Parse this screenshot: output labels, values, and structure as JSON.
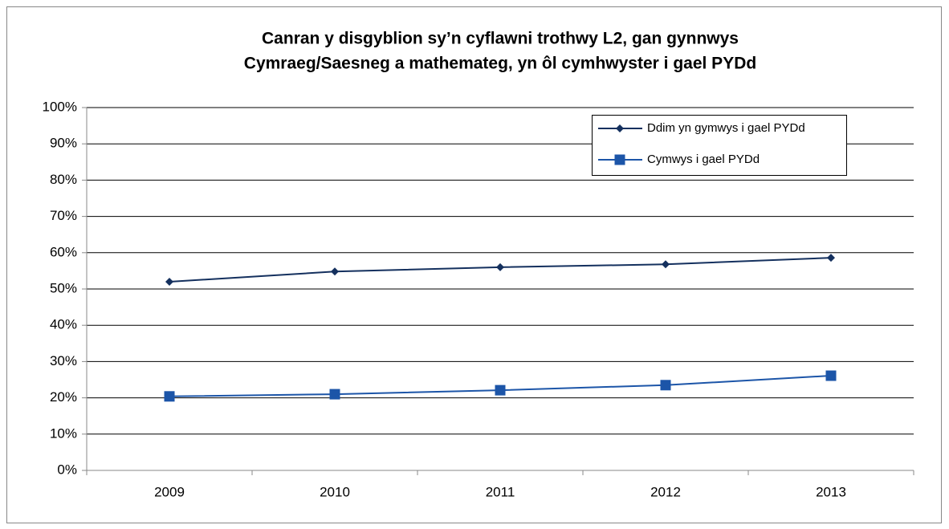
{
  "chart_data": {
    "type": "line",
    "title": [
      "Canran y disgyblion sy’n cyflawni trothwy L2, gan gynnwys",
      "Cymraeg/Saesneg a mathemateg, yn ôl cymhwyster i gael PYDd"
    ],
    "categories": [
      "2009",
      "2010",
      "2011",
      "2012",
      "2013"
    ],
    "series": [
      {
        "name": "Ddim yn gymwys i gael PYDd",
        "color": "#14305e",
        "marker": "diamond",
        "values": [
          52,
          54.8,
          56,
          56.8,
          58.6
        ]
      },
      {
        "name": "Cymwys i gael PYDd",
        "color": "#1c55a8",
        "marker": "square",
        "values": [
          20.4,
          21,
          22.1,
          23.5,
          26.1
        ]
      }
    ],
    "ylim": [
      0,
      100
    ],
    "yticks": [
      {
        "value": 0,
        "label": "0%"
      },
      {
        "value": 10,
        "label": "10%"
      },
      {
        "value": 20,
        "label": "20%"
      },
      {
        "value": 30,
        "label": "30%"
      },
      {
        "value": 40,
        "label": "40%"
      },
      {
        "value": 50,
        "label": "50%"
      },
      {
        "value": 60,
        "label": "60%"
      },
      {
        "value": 70,
        "label": "70%"
      },
      {
        "value": 80,
        "label": "80%"
      },
      {
        "value": 90,
        "label": "90%"
      },
      {
        "value": 100,
        "label": "100%"
      }
    ],
    "grid": true,
    "legend": "upper right"
  }
}
